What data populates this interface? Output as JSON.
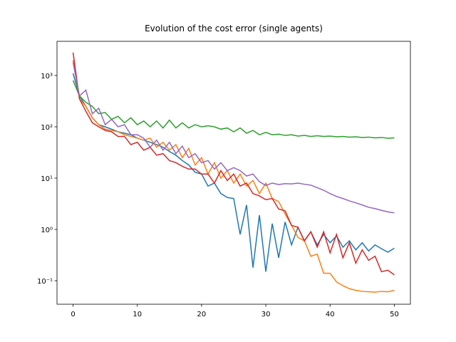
{
  "chart_data": {
    "type": "line",
    "title": "Evolution of the cost error (single agents)",
    "x": [
      0,
      1,
      2,
      3,
      4,
      5,
      6,
      7,
      8,
      9,
      10,
      11,
      12,
      13,
      14,
      15,
      16,
      17,
      18,
      19,
      20,
      21,
      22,
      23,
      24,
      25,
      26,
      27,
      28,
      29,
      30,
      31,
      32,
      33,
      34,
      35,
      36,
      37,
      38,
      39,
      40,
      41,
      42,
      43,
      44,
      45,
      46,
      47,
      48,
      49,
      50
    ],
    "xlim": [
      -2.5,
      52.5
    ],
    "xticks": [
      0,
      10,
      20,
      30,
      40,
      50
    ],
    "ylim": [
      0.0348,
      4640
    ],
    "log_y": true,
    "yticks": [
      {
        "value": 0.1,
        "label": "10⁻¹"
      },
      {
        "value": 1,
        "label": "10⁰"
      },
      {
        "value": 10,
        "label": "10¹"
      },
      {
        "value": 100,
        "label": "10²"
      },
      {
        "value": 1000,
        "label": "10³"
      }
    ],
    "series": [
      {
        "color": "#1f77b4",
        "values": [
          1100,
          400,
          250,
          150,
          110,
          100,
          90,
          80,
          75,
          70,
          60,
          55,
          50,
          45,
          40,
          33,
          28,
          22,
          18,
          13,
          12,
          7,
          8,
          5,
          4.2,
          4.0,
          0.8,
          3.0,
          0.18,
          1.9,
          0.15,
          1.3,
          0.28,
          1.4,
          0.5,
          1.1,
          0.6,
          0.9,
          0.5,
          0.8,
          0.55,
          0.75,
          0.45,
          0.6,
          0.4,
          0.55,
          0.38,
          0.5,
          0.42,
          0.36,
          0.43
        ]
      },
      {
        "color": "#ff7f0e",
        "values": [
          2000,
          350,
          250,
          150,
          110,
          90,
          85,
          80,
          70,
          65,
          60,
          55,
          60,
          40,
          50,
          35,
          45,
          25,
          38,
          18,
          25,
          12,
          20,
          10,
          14,
          8,
          12,
          7,
          9,
          5,
          8,
          4,
          3.5,
          2,
          1.2,
          0.7,
          0.6,
          0.3,
          0.33,
          0.14,
          0.14,
          0.095,
          0.08,
          0.07,
          0.065,
          0.062,
          0.061,
          0.06,
          0.062,
          0.061,
          0.065
        ]
      },
      {
        "color": "#2ca02c",
        "values": [
          800,
          400,
          300,
          250,
          180,
          190,
          140,
          160,
          120,
          150,
          110,
          130,
          100,
          130,
          95,
          135,
          95,
          120,
          95,
          110,
          100,
          105,
          100,
          90,
          95,
          80,
          95,
          75,
          85,
          70,
          78,
          70,
          72,
          68,
          70,
          66,
          68,
          65,
          67,
          65,
          66,
          64,
          65,
          63,
          64,
          62,
          63,
          61,
          62,
          60,
          61
        ]
      },
      {
        "color": "#d62728",
        "values": [
          2800,
          350,
          200,
          120,
          100,
          85,
          80,
          65,
          65,
          45,
          50,
          35,
          40,
          28,
          30,
          22,
          20,
          17,
          15,
          15,
          12,
          12,
          8,
          14,
          9,
          12,
          7,
          8,
          5,
          4.5,
          3.8,
          4,
          2.5,
          2.3,
          1.2,
          1.1,
          0.6,
          0.9,
          0.45,
          0.9,
          0.35,
          0.8,
          0.28,
          0.55,
          0.22,
          0.4,
          0.25,
          0.3,
          0.15,
          0.16,
          0.13
        ]
      },
      {
        "color": "#9467bd",
        "values": [
          1800,
          400,
          520,
          180,
          230,
          110,
          140,
          100,
          110,
          70,
          70,
          60,
          40,
          55,
          35,
          50,
          30,
          42,
          25,
          30,
          20,
          22,
          15,
          20,
          14,
          16,
          14,
          11,
          12,
          8.5,
          7.2,
          8,
          7.5,
          7.8,
          7.7,
          8,
          7.6,
          7.3,
          6.5,
          5.8,
          5,
          4.4,
          4,
          3.6,
          3.3,
          3,
          2.7,
          2.55,
          2.35,
          2.2,
          2.1
        ]
      }
    ]
  }
}
